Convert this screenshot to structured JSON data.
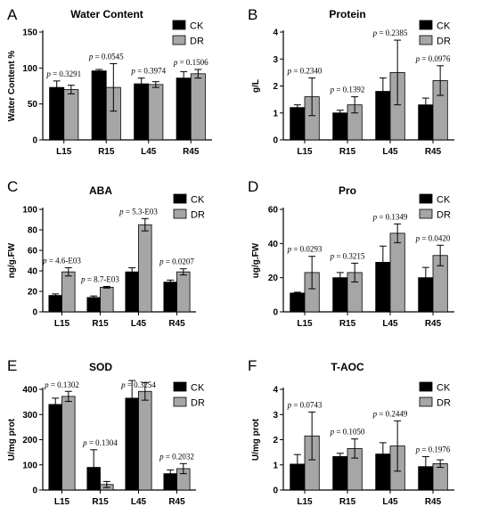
{
  "chart_data": [
    {
      "panel": "A",
      "type": "bar",
      "title": "Water Content",
      "ylabel": "Water Content %",
      "ylim": [
        0,
        150
      ],
      "yticks": [
        0,
        50,
        100,
        150
      ],
      "categories": [
        "L15",
        "R15",
        "L45",
        "R45"
      ],
      "series": [
        {
          "name": "CK",
          "values": [
            73,
            96,
            78,
            86
          ],
          "errors": [
            9,
            2,
            8,
            9
          ]
        },
        {
          "name": "DR",
          "values": [
            70,
            73,
            77,
            92
          ],
          "errors": [
            6,
            33,
            4,
            6
          ]
        }
      ],
      "p_values": [
        "0.3291",
        "0.0545",
        "0.3974",
        "0.1506"
      ]
    },
    {
      "panel": "B",
      "type": "bar",
      "title": "Protein",
      "ylabel": "g/L",
      "ylim": [
        0,
        4
      ],
      "yticks": [
        0,
        1,
        2,
        3,
        4
      ],
      "categories": [
        "L15",
        "R15",
        "L45",
        "R45"
      ],
      "series": [
        {
          "name": "CK",
          "values": [
            1.2,
            1.0,
            1.8,
            1.3
          ],
          "errors": [
            0.1,
            0.1,
            0.5,
            0.25
          ]
        },
        {
          "name": "DR",
          "values": [
            1.6,
            1.3,
            2.5,
            2.2
          ],
          "errors": [
            0.7,
            0.3,
            1.2,
            0.55
          ]
        }
      ],
      "p_values": [
        "0.2340",
        "0.1392",
        "0.2385",
        "0.0976"
      ]
    },
    {
      "panel": "C",
      "type": "bar",
      "title": "ABA",
      "ylabel": "ng/g.FW",
      "ylim": [
        0,
        100
      ],
      "yticks": [
        0,
        20,
        40,
        60,
        80,
        100
      ],
      "categories": [
        "L15",
        "R15",
        "L45",
        "R45"
      ],
      "series": [
        {
          "name": "CK",
          "values": [
            16,
            14,
            39,
            29
          ],
          "errors": [
            1.5,
            1.5,
            4,
            2
          ]
        },
        {
          "name": "DR",
          "values": [
            39,
            24,
            85,
            39
          ],
          "errors": [
            4,
            0.8,
            6,
            3
          ]
        }
      ],
      "p_values": [
        "4.6-E03",
        "8.7-E03",
        "5.3-E03",
        "0.0207"
      ]
    },
    {
      "panel": "D",
      "type": "bar",
      "title": "Pro",
      "ylabel": "ug/g.FW",
      "ylim": [
        0,
        60
      ],
      "yticks": [
        0,
        20,
        40,
        60
      ],
      "categories": [
        "L15",
        "R15",
        "L45",
        "R45"
      ],
      "series": [
        {
          "name": "CK",
          "values": [
            11,
            20,
            29,
            20
          ],
          "errors": [
            0.5,
            3,
            9.5,
            6
          ]
        },
        {
          "name": "DR",
          "values": [
            23,
            23,
            46,
            33
          ],
          "errors": [
            9.5,
            5.5,
            5.5,
            6
          ]
        }
      ],
      "p_values": [
        "0.0293",
        "0.3215",
        "0.1349",
        "0.0420"
      ]
    },
    {
      "panel": "E",
      "type": "bar",
      "title": "SOD",
      "ylabel": "U/mg prot",
      "ylim": [
        0,
        400
      ],
      "yticks": [
        0,
        100,
        200,
        300,
        400
      ],
      "categories": [
        "L15",
        "R15",
        "L45",
        "R45"
      ],
      "series": [
        {
          "name": "CK",
          "values": [
            340,
            90,
            365,
            65
          ],
          "errors": [
            25,
            70,
            70,
            15
          ]
        },
        {
          "name": "DR",
          "values": [
            372,
            22,
            392,
            85
          ],
          "errors": [
            20,
            12,
            35,
            20
          ]
        }
      ],
      "p_values": [
        "0.1302",
        "0.1304",
        "0.3254",
        "0.2032"
      ]
    },
    {
      "panel": "F",
      "type": "bar",
      "title": "T-AOC",
      "ylabel": "U/mg prot",
      "ylim": [
        0,
        4
      ],
      "yticks": [
        0,
        1,
        2,
        3,
        4
      ],
      "categories": [
        "L15",
        "R15",
        "L45",
        "R45"
      ],
      "series": [
        {
          "name": "CK",
          "values": [
            1.03,
            1.33,
            1.43,
            0.93
          ],
          "errors": [
            0.38,
            0.13,
            0.45,
            0.4
          ]
        },
        {
          "name": "DR",
          "values": [
            2.15,
            1.65,
            1.75,
            1.05
          ],
          "errors": [
            0.95,
            0.38,
            1.0,
            0.15
          ]
        }
      ],
      "p_values": [
        "0.0743",
        "0.1050",
        "0.2449",
        "0.1976"
      ]
    }
  ],
  "p_prefix": "p",
  "p_equals": " = ",
  "colors": {
    "CK": "#000000",
    "DR": "#a6a6a6",
    "axis": "#000000"
  }
}
